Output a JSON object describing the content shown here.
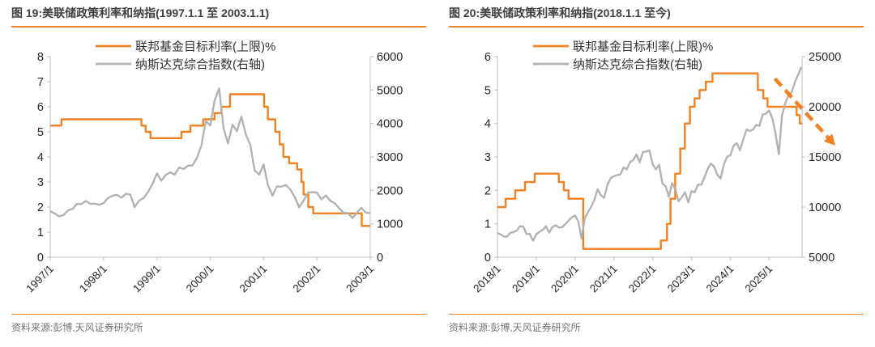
{
  "colors": {
    "accent_orange": "#f28122",
    "series_gray": "#b3b3b3",
    "axis_line": "#bfbfbf",
    "axis_text": "#262626",
    "title_text": "#3f3f3f",
    "legend_text": "#333333",
    "source_text": "#757575"
  },
  "chart_data": [
    {
      "type": "line",
      "title": "图 19:美联储政策利率和纳指(1997.1.1 至 2003.1.1)",
      "source": "资料来源:彭博,天风证券研究所",
      "legend_position": "top-center",
      "grid": false,
      "x_axis": {
        "min": 1997,
        "max": 2003,
        "tick_values": [
          1997,
          1998,
          1999,
          2000,
          2001,
          2002,
          2003
        ],
        "tick_labels": [
          "1997/1",
          "1998/1",
          "1999/1",
          "2000/1",
          "2001/1",
          "2002/1",
          "2003/1"
        ]
      },
      "left_axis": {
        "min": 0,
        "max": 8,
        "tick_values": [
          0,
          1,
          2,
          3,
          4,
          5,
          6,
          7,
          8
        ]
      },
      "right_axis": {
        "min": 0,
        "max": 6000,
        "tick_values": [
          0,
          1000,
          2000,
          3000,
          4000,
          5000,
          6000
        ]
      },
      "series": [
        {
          "id": "fed-funds-target-rate-line",
          "name": "联邦基金目标利率(上限)%",
          "axis": "left",
          "step": true,
          "color": "#f28122",
          "points": [
            [
              1997.0,
              5.25
            ],
            [
              1997.21,
              5.5
            ],
            [
              1998.71,
              5.25
            ],
            [
              1998.79,
              5.0
            ],
            [
              1998.88,
              4.75
            ],
            [
              1999.46,
              5.0
            ],
            [
              1999.63,
              5.25
            ],
            [
              1999.87,
              5.5
            ],
            [
              2000.08,
              5.75
            ],
            [
              2000.21,
              6.0
            ],
            [
              2000.37,
              6.5
            ],
            [
              2001.01,
              6.0
            ],
            [
              2001.08,
              5.5
            ],
            [
              2001.22,
              5.0
            ],
            [
              2001.3,
              4.5
            ],
            [
              2001.37,
              4.0
            ],
            [
              2001.48,
              3.75
            ],
            [
              2001.63,
              3.5
            ],
            [
              2001.71,
              3.0
            ],
            [
              2001.75,
              2.5
            ],
            [
              2001.84,
              2.0
            ],
            [
              2001.93,
              1.75
            ],
            [
              2002.84,
              1.25
            ],
            [
              2003.0,
              1.25
            ]
          ]
        },
        {
          "id": "nasdaq-composite-line",
          "name": "纳斯达克综合指数(右轴)",
          "axis": "right",
          "step": false,
          "color": "#b3b3b3",
          "points": [
            [
              1997.0,
              1380
            ],
            [
              1997.083,
              1310
            ],
            [
              1997.167,
              1222
            ],
            [
              1997.25,
              1260
            ],
            [
              1997.333,
              1400
            ],
            [
              1997.417,
              1442
            ],
            [
              1997.5,
              1593
            ],
            [
              1997.583,
              1587
            ],
            [
              1997.667,
              1685
            ],
            [
              1997.75,
              1594
            ],
            [
              1997.833,
              1601
            ],
            [
              1997.917,
              1570
            ],
            [
              1998.0,
              1619
            ],
            [
              1998.083,
              1771
            ],
            [
              1998.167,
              1836
            ],
            [
              1998.25,
              1868
            ],
            [
              1998.333,
              1779
            ],
            [
              1998.417,
              1895
            ],
            [
              1998.5,
              1872
            ],
            [
              1998.583,
              1499
            ],
            [
              1998.667,
              1694
            ],
            [
              1998.75,
              1771
            ],
            [
              1998.833,
              1950
            ],
            [
              1998.917,
              2193
            ],
            [
              1999.0,
              2506
            ],
            [
              1999.083,
              2288
            ],
            [
              1999.167,
              2461
            ],
            [
              1999.25,
              2543
            ],
            [
              1999.333,
              2471
            ],
            [
              1999.417,
              2686
            ],
            [
              1999.5,
              2638
            ],
            [
              1999.583,
              2739
            ],
            [
              1999.667,
              2746
            ],
            [
              1999.75,
              2966
            ],
            [
              1999.833,
              3336
            ],
            [
              1999.917,
              4069
            ],
            [
              2000.0,
              3940
            ],
            [
              2000.083,
              4697
            ],
            [
              2000.167,
              5048
            ],
            [
              2000.25,
              3860
            ],
            [
              2000.333,
              3401
            ],
            [
              2000.417,
              3966
            ],
            [
              2000.5,
              3767
            ],
            [
              2000.583,
              4206
            ],
            [
              2000.667,
              3673
            ],
            [
              2000.75,
              3370
            ],
            [
              2000.833,
              2597
            ],
            [
              2000.917,
              2471
            ],
            [
              2001.0,
              2773
            ],
            [
              2001.083,
              2152
            ],
            [
              2001.167,
              1840
            ],
            [
              2001.25,
              2116
            ],
            [
              2001.333,
              2110
            ],
            [
              2001.417,
              2161
            ],
            [
              2001.5,
              2027
            ],
            [
              2001.583,
              1805
            ],
            [
              2001.667,
              1498
            ],
            [
              2001.75,
              1690
            ],
            [
              2001.833,
              1931
            ],
            [
              2001.917,
              1950
            ],
            [
              2002.0,
              1934
            ],
            [
              2002.083,
              1731
            ],
            [
              2002.167,
              1845
            ],
            [
              2002.25,
              1688
            ],
            [
              2002.333,
              1616
            ],
            [
              2002.417,
              1463
            ],
            [
              2002.5,
              1328
            ],
            [
              2002.583,
              1315
            ],
            [
              2002.667,
              1172
            ],
            [
              2002.75,
              1330
            ],
            [
              2002.833,
              1479
            ],
            [
              2002.917,
              1336
            ],
            [
              2003.0,
              1321
            ]
          ]
        }
      ],
      "annotations": []
    },
    {
      "type": "line",
      "title": "图 20:美联储政策利率和纳指(2018.1.1 至今)",
      "source": "资料来源:彭博,天风证券研究所",
      "legend_position": "top-center",
      "grid": false,
      "x_axis": {
        "min": 2018,
        "max": 2025.85,
        "tick_values": [
          2018,
          2019,
          2020,
          2021,
          2022,
          2023,
          2024,
          2025
        ],
        "tick_labels": [
          "2018/1",
          "2019/1",
          "2020/1",
          "2021/1",
          "2022/1",
          "2023/1",
          "2024/1",
          "2025/1"
        ]
      },
      "left_axis": {
        "min": 0,
        "max": 6,
        "tick_values": [
          0,
          1,
          2,
          3,
          4,
          5,
          6
        ]
      },
      "right_axis": {
        "min": 5000,
        "max": 25000,
        "tick_values": [
          5000,
          10000,
          15000,
          20000,
          25000
        ]
      },
      "series": [
        {
          "id": "fed-funds-target-rate-line",
          "name": "联邦基金目标利率(上限)%",
          "axis": "left",
          "step": true,
          "color": "#f28122",
          "points": [
            [
              2018.0,
              1.5
            ],
            [
              2018.21,
              1.75
            ],
            [
              2018.46,
              2.0
            ],
            [
              2018.71,
              2.25
            ],
            [
              2018.96,
              2.5
            ],
            [
              2019.58,
              2.25
            ],
            [
              2019.71,
              2.0
            ],
            [
              2019.83,
              1.75
            ],
            [
              2020.21,
              0.25
            ],
            [
              2022.21,
              0.5
            ],
            [
              2022.37,
              1.0
            ],
            [
              2022.46,
              1.75
            ],
            [
              2022.58,
              2.5
            ],
            [
              2022.71,
              3.25
            ],
            [
              2022.83,
              4.0
            ],
            [
              2022.96,
              4.5
            ],
            [
              2023.08,
              4.75
            ],
            [
              2023.21,
              5.0
            ],
            [
              2023.37,
              5.25
            ],
            [
              2023.54,
              5.5
            ],
            [
              2024.71,
              5.0
            ],
            [
              2024.85,
              4.75
            ],
            [
              2024.96,
              4.5
            ],
            [
              2025.71,
              4.25
            ],
            [
              2025.79,
              4.0
            ],
            [
              2025.85,
              4.0
            ]
          ]
        },
        {
          "id": "nasdaq-composite-line",
          "name": "纳斯达克综合指数(右轴)",
          "axis": "right",
          "step": false,
          "color": "#b3b3b3",
          "points": [
            [
              2018.0,
              7411
            ],
            [
              2018.083,
              7273
            ],
            [
              2018.167,
              7063
            ],
            [
              2018.25,
              7066
            ],
            [
              2018.333,
              7442
            ],
            [
              2018.417,
              7510
            ],
            [
              2018.5,
              7672
            ],
            [
              2018.583,
              8110
            ],
            [
              2018.667,
              8046
            ],
            [
              2018.75,
              7306
            ],
            [
              2018.833,
              7331
            ],
            [
              2018.917,
              6635
            ],
            [
              2019.0,
              7282
            ],
            [
              2019.083,
              7533
            ],
            [
              2019.167,
              7729
            ],
            [
              2019.25,
              8095
            ],
            [
              2019.333,
              7453
            ],
            [
              2019.417,
              8006
            ],
            [
              2019.5,
              8175
            ],
            [
              2019.583,
              7963
            ],
            [
              2019.667,
              7999
            ],
            [
              2019.75,
              8292
            ],
            [
              2019.833,
              8665
            ],
            [
              2019.917,
              8973
            ],
            [
              2020.0,
              9151
            ],
            [
              2020.083,
              8567
            ],
            [
              2020.167,
              6861
            ],
            [
              2020.25,
              8890
            ],
            [
              2020.333,
              9490
            ],
            [
              2020.417,
              10059
            ],
            [
              2020.5,
              10745
            ],
            [
              2020.583,
              11775
            ],
            [
              2020.667,
              11168
            ],
            [
              2020.75,
              10912
            ],
            [
              2020.833,
              12199
            ],
            [
              2020.917,
              12888
            ],
            [
              2021.0,
              13071
            ],
            [
              2021.083,
              13192
            ],
            [
              2021.167,
              13247
            ],
            [
              2021.25,
              13963
            ],
            [
              2021.333,
              13749
            ],
            [
              2021.417,
              14504
            ],
            [
              2021.5,
              14673
            ],
            [
              2021.583,
              15259
            ],
            [
              2021.667,
              14449
            ],
            [
              2021.75,
              15498
            ],
            [
              2021.833,
              15538
            ],
            [
              2021.917,
              15645
            ],
            [
              2022.0,
              14240
            ],
            [
              2022.083,
              13751
            ],
            [
              2022.167,
              14221
            ],
            [
              2022.25,
              12335
            ],
            [
              2022.333,
              12081
            ],
            [
              2022.417,
              11029
            ],
            [
              2022.5,
              12391
            ],
            [
              2022.583,
              11816
            ],
            [
              2022.667,
              10576
            ],
            [
              2022.75,
              10988
            ],
            [
              2022.833,
              11468
            ],
            [
              2022.917,
              10466
            ],
            [
              2023.0,
              11585
            ],
            [
              2023.083,
              11456
            ],
            [
              2023.167,
              12222
            ],
            [
              2023.25,
              12227
            ],
            [
              2023.333,
              12935
            ],
            [
              2023.417,
              13788
            ],
            [
              2023.5,
              14346
            ],
            [
              2023.583,
              14035
            ],
            [
              2023.667,
              13219
            ],
            [
              2023.75,
              12851
            ],
            [
              2023.833,
              14226
            ],
            [
              2023.917,
              15011
            ],
            [
              2024.0,
              15164
            ],
            [
              2024.083,
              16092
            ],
            [
              2024.167,
              16379
            ],
            [
              2024.25,
              15658
            ],
            [
              2024.333,
              16735
            ],
            [
              2024.417,
              17733
            ],
            [
              2024.5,
              17599
            ],
            [
              2024.583,
              17713
            ],
            [
              2024.667,
              18189
            ],
            [
              2024.75,
              18095
            ],
            [
              2024.833,
              19218
            ],
            [
              2024.917,
              19311
            ],
            [
              2025.0,
              19627
            ],
            [
              2025.083,
              18847
            ],
            [
              2025.167,
              17299
            ],
            [
              2025.25,
              15267
            ],
            [
              2025.333,
              19114
            ],
            [
              2025.417,
              20370
            ],
            [
              2025.5,
              21122
            ],
            [
              2025.583,
              21456
            ],
            [
              2025.667,
              22484
            ],
            [
              2025.75,
              23200
            ],
            [
              2025.83,
              23950
            ]
          ]
        }
      ],
      "annotations": [
        {
          "type": "arrow",
          "id": "rate-downtrend-arrow",
          "axis": "right",
          "style": "dashed",
          "color": "#f28122",
          "from": [
            2025.15,
            22800
          ],
          "to": [
            2026.55,
            16800
          ]
        }
      ]
    }
  ]
}
